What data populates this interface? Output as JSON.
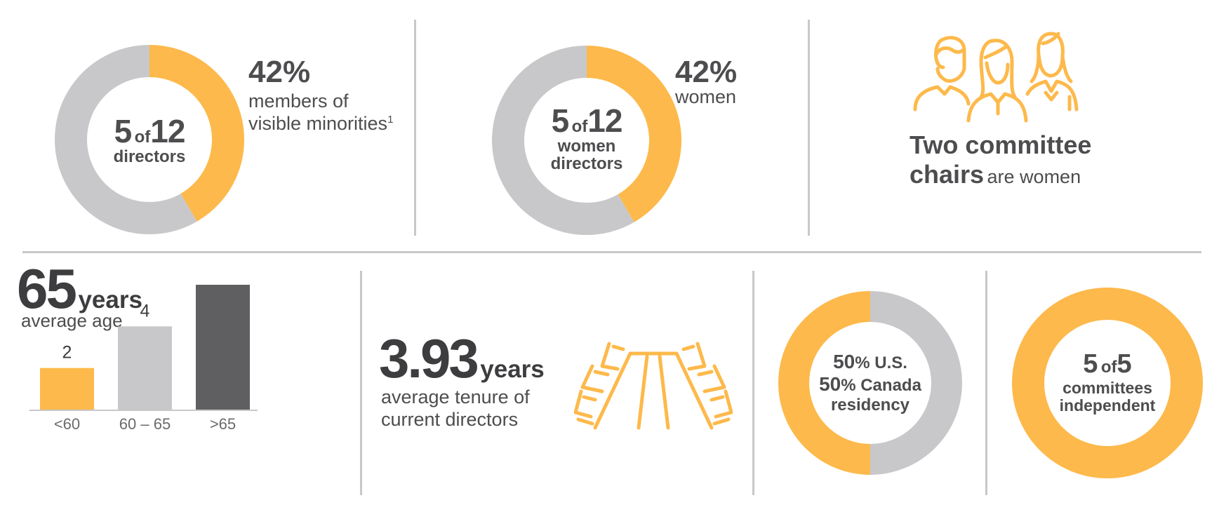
{
  "colors": {
    "accent": "#fdb94b",
    "neutral": "#c8c8ca",
    "dark": "#5f5f61",
    "text": "#4d4d4f"
  },
  "visible_minorities": {
    "count": "5",
    "of": "of",
    "total": "12",
    "unit": "directors",
    "percent": "42%",
    "desc_line1": "members of",
    "desc_line2": "visible minorities",
    "footnote": "1"
  },
  "women": {
    "count": "5",
    "of": "of",
    "total": "12",
    "unit_line1": "women",
    "unit_line2": "directors",
    "percent": "42%",
    "desc": "women"
  },
  "committee_chairs": {
    "bold_line1": "Two committee",
    "bold_line2": "chairs",
    "rest": "are women",
    "icon": "three-people-icon"
  },
  "average_age": {
    "value": "65",
    "unit": "years",
    "desc": "average age"
  },
  "tenure": {
    "value": "3.93",
    "unit": "years",
    "desc_line1": "average tenure of",
    "desc_line2": "current directors",
    "icon": "boardroom-table-icon"
  },
  "residency": {
    "us_value": "50",
    "us_label": "% U.S.",
    "ca_value": "50",
    "ca_label": "% Canada",
    "line3": "residency"
  },
  "committees": {
    "count": "5",
    "of": "of",
    "total": "5",
    "line2": "committees",
    "line3": "independent"
  },
  "chart_data": [
    {
      "type": "pie",
      "variant": "donut",
      "slices": [
        {
          "label": "visible minorities",
          "value": 5,
          "color": "#fdb94b"
        },
        {
          "label": "other",
          "value": 7,
          "color": "#c8c8ca"
        }
      ]
    },
    {
      "type": "pie",
      "variant": "donut",
      "slices": [
        {
          "label": "women",
          "value": 5,
          "color": "#fdb94b"
        },
        {
          "label": "other",
          "value": 7,
          "color": "#c8c8ca"
        }
      ]
    },
    {
      "type": "bar",
      "categories": [
        "<60",
        "60 – 65",
        ">65"
      ],
      "values": [
        2,
        4,
        6
      ],
      "colors": [
        "#fdb94b",
        "#c8c8ca",
        "#5f5f61"
      ],
      "ylim": [
        0,
        6
      ]
    },
    {
      "type": "pie",
      "variant": "donut",
      "slices": [
        {
          "label": "U.S.",
          "value": 50,
          "color": "#fdb94b"
        },
        {
          "label": "Canada",
          "value": 50,
          "color": "#c8c8ca"
        }
      ]
    },
    {
      "type": "pie",
      "variant": "donut",
      "slices": [
        {
          "label": "independent",
          "value": 5,
          "color": "#fdb94b"
        }
      ]
    }
  ]
}
